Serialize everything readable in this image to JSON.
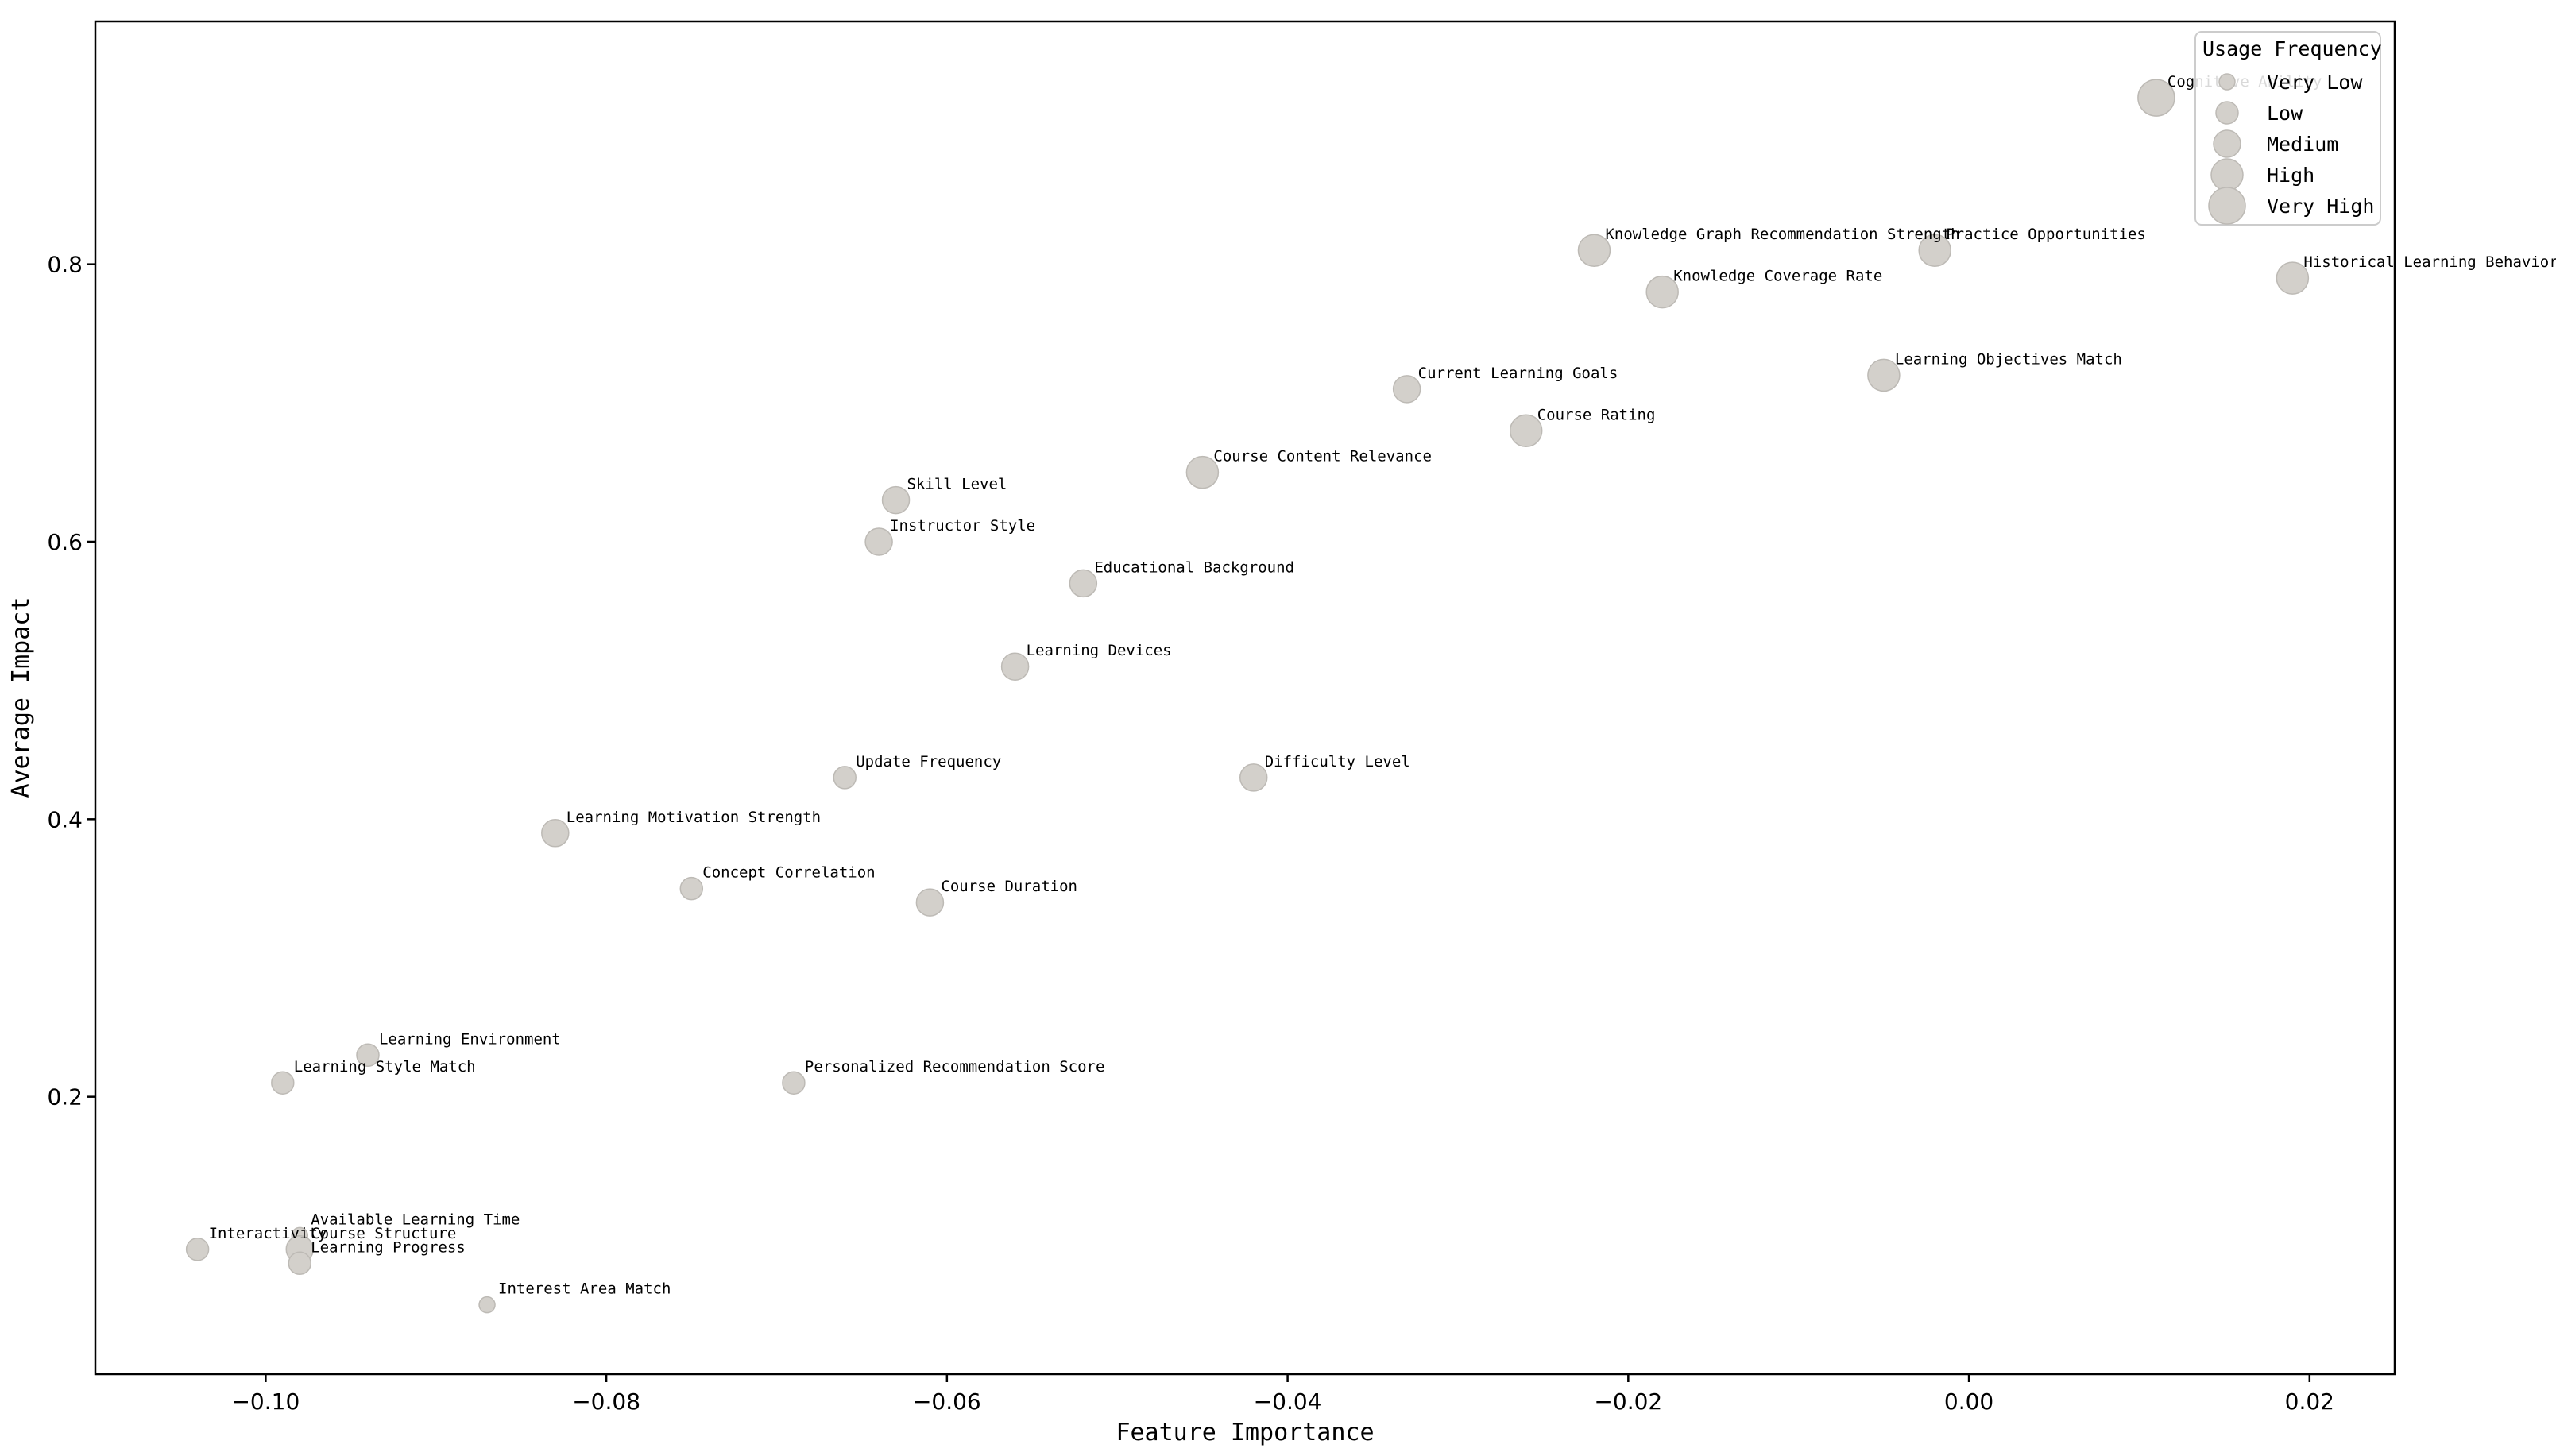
{
  "chart_data": {
    "type": "scatter",
    "title": "",
    "xlabel": "Feature Importance",
    "ylabel": "Average Impact",
    "xlim": [
      -0.11,
      0.025
    ],
    "ylim": [
      0.0,
      0.975
    ],
    "xticks": [
      -0.1,
      -0.08,
      -0.06,
      -0.04,
      -0.02,
      0.0,
      0.02
    ],
    "xtick_labels": [
      "−0.10",
      "−0.08",
      "−0.06",
      "−0.04",
      "−0.02",
      "0.00",
      "0.02"
    ],
    "yticks": [
      0.2,
      0.4,
      0.6,
      0.8
    ],
    "ytick_labels": [
      "0.2",
      "0.4",
      "0.6",
      "0.8"
    ],
    "grid": false,
    "marker_color": "#d3d0cb",
    "marker_edge_color": "#bdbab5",
    "legend": {
      "title": "Usage Frequency",
      "placement": "top-right",
      "entries": [
        {
          "label": "Very Low",
          "level": 1
        },
        {
          "label": "Low",
          "level": 2
        },
        {
          "label": "Medium",
          "level": 3
        },
        {
          "label": "High",
          "level": 4
        },
        {
          "label": "Very High",
          "level": 5
        }
      ]
    },
    "points": [
      {
        "label": "Cognitive Ability",
        "x": 0.011,
        "y": 0.92,
        "frequency": 5
      },
      {
        "label": "Knowledge Graph Recommendation Strength",
        "x": -0.022,
        "y": 0.81,
        "frequency": 4
      },
      {
        "label": "Practice Opportunities",
        "x": -0.002,
        "y": 0.81,
        "frequency": 4
      },
      {
        "label": "Historical Learning Behavior",
        "x": 0.019,
        "y": 0.79,
        "frequency": 4
      },
      {
        "label": "Knowledge Coverage Rate",
        "x": -0.018,
        "y": 0.78,
        "frequency": 4
      },
      {
        "label": "Learning Objectives Match",
        "x": -0.005,
        "y": 0.72,
        "frequency": 4
      },
      {
        "label": "Current Learning Goals",
        "x": -0.033,
        "y": 0.71,
        "frequency": 3
      },
      {
        "label": "Course Rating",
        "x": -0.026,
        "y": 0.68,
        "frequency": 4
      },
      {
        "label": "Course Content Relevance",
        "x": -0.045,
        "y": 0.65,
        "frequency": 4
      },
      {
        "label": "Skill Level",
        "x": -0.063,
        "y": 0.63,
        "frequency": 3
      },
      {
        "label": "Instructor Style",
        "x": -0.064,
        "y": 0.6,
        "frequency": 3
      },
      {
        "label": "Educational Background",
        "x": -0.052,
        "y": 0.57,
        "frequency": 3
      },
      {
        "label": "Learning Devices",
        "x": -0.056,
        "y": 0.51,
        "frequency": 3
      },
      {
        "label": "Update Frequency",
        "x": -0.066,
        "y": 0.43,
        "frequency": 2
      },
      {
        "label": "Difficulty Level",
        "x": -0.042,
        "y": 0.43,
        "frequency": 3
      },
      {
        "label": "Learning Motivation Strength",
        "x": -0.083,
        "y": 0.39,
        "frequency": 3
      },
      {
        "label": "Concept Correlation",
        "x": -0.075,
        "y": 0.35,
        "frequency": 2
      },
      {
        "label": "Course Duration",
        "x": -0.061,
        "y": 0.34,
        "frequency": 3
      },
      {
        "label": "Learning Environment",
        "x": -0.094,
        "y": 0.23,
        "frequency": 2
      },
      {
        "label": "Learning Style Match",
        "x": -0.099,
        "y": 0.21,
        "frequency": 2
      },
      {
        "label": "Personalized Recommendation Score",
        "x": -0.069,
        "y": 0.21,
        "frequency": 2
      },
      {
        "label": "Available Learning Time",
        "x": -0.098,
        "y": 0.1,
        "frequency": 1
      },
      {
        "label": "Interactivity",
        "x": -0.104,
        "y": 0.09,
        "frequency": 2
      },
      {
        "label": "Course Structure",
        "x": -0.098,
        "y": 0.09,
        "frequency": 3
      },
      {
        "label": "Learning Progress",
        "x": -0.098,
        "y": 0.08,
        "frequency": 2
      },
      {
        "label": "Interest Area Match",
        "x": -0.087,
        "y": 0.05,
        "frequency": 1
      }
    ]
  }
}
